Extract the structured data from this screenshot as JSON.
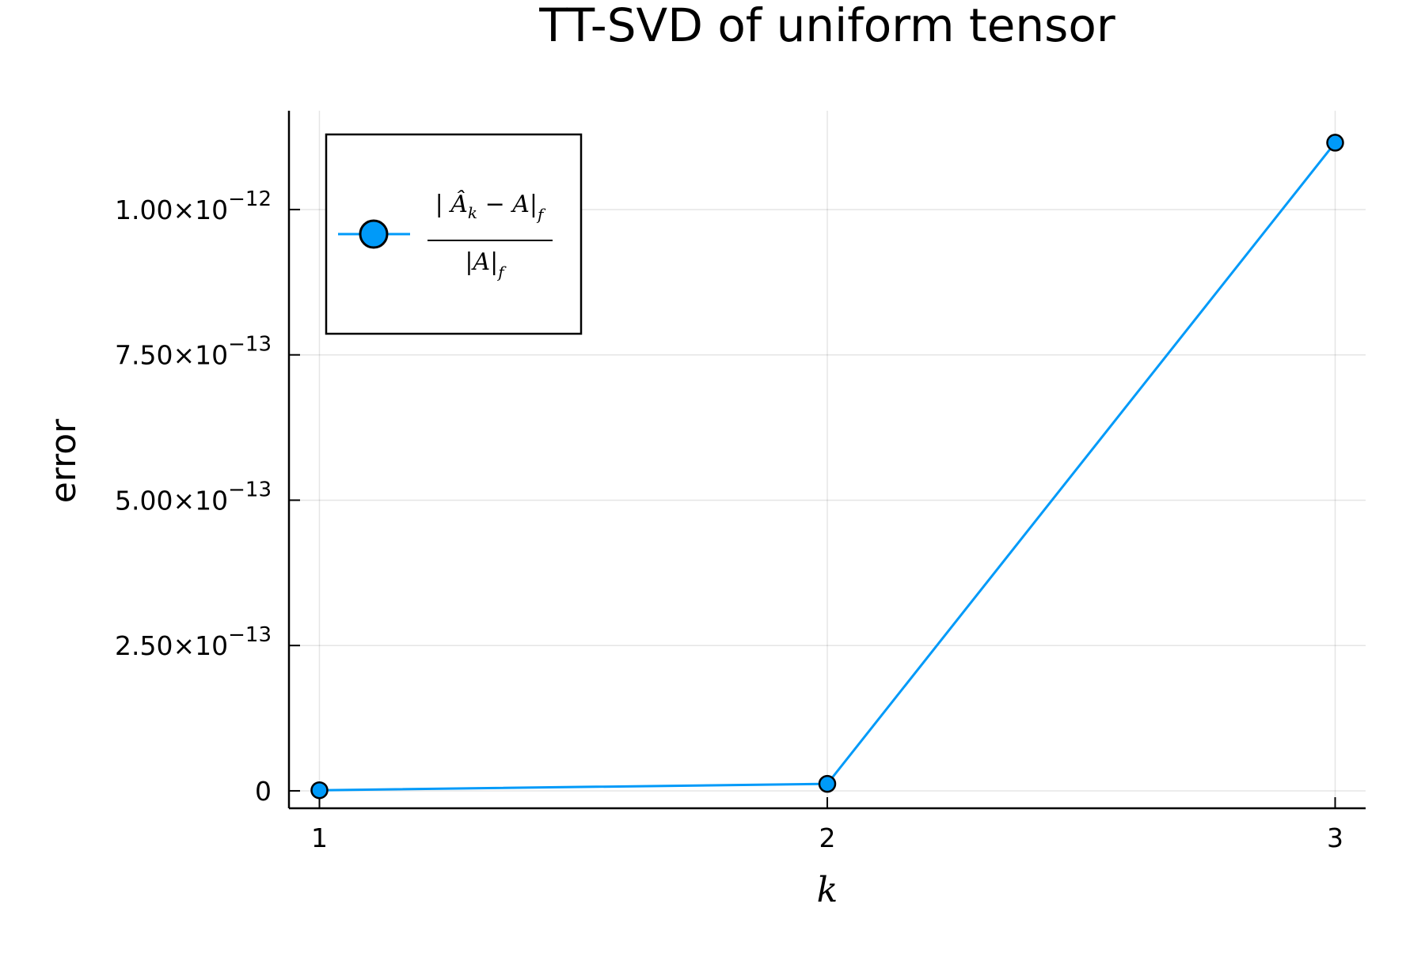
{
  "chart_data": {
    "type": "line",
    "title": "TT-SVD of uniform tensor",
    "xlabel": "k",
    "ylabel": "error",
    "x": [
      1,
      2,
      3
    ],
    "series": [
      {
        "name": "|Â_k − A|_f / |A|_f",
        "values": [
          1e-15,
          1.2e-14,
          1.115e-12
        ],
        "color": "#009af9",
        "marker": "circle"
      }
    ],
    "xticks": [
      {
        "value": 1,
        "label": "1"
      },
      {
        "value": 2,
        "label": "2"
      },
      {
        "value": 3,
        "label": "3"
      }
    ],
    "yticks": [
      {
        "value": 0,
        "mantissa": "0",
        "exponent": ""
      },
      {
        "value": 2.5e-13,
        "mantissa": "2.50×10",
        "exponent": "−13"
      },
      {
        "value": 5e-13,
        "mantissa": "5.00×10",
        "exponent": "−13"
      },
      {
        "value": 7.5e-13,
        "mantissa": "7.50×10",
        "exponent": "−13"
      },
      {
        "value": 1e-12,
        "mantissa": "1.00×10",
        "exponent": "−12"
      }
    ],
    "xlim": [
      0.94,
      3.06
    ],
    "ylim": [
      -3e-14,
      1.17e-12
    ],
    "grid": true,
    "legend_position": "top-left",
    "legend": {
      "numerator": {
        "open": "| ",
        "hat": "Â",
        "sub": "k",
        "mid": " − A",
        "close": "|",
        "closesub": "f"
      },
      "denominator": {
        "body": "|A|",
        "sub": "f"
      }
    }
  }
}
